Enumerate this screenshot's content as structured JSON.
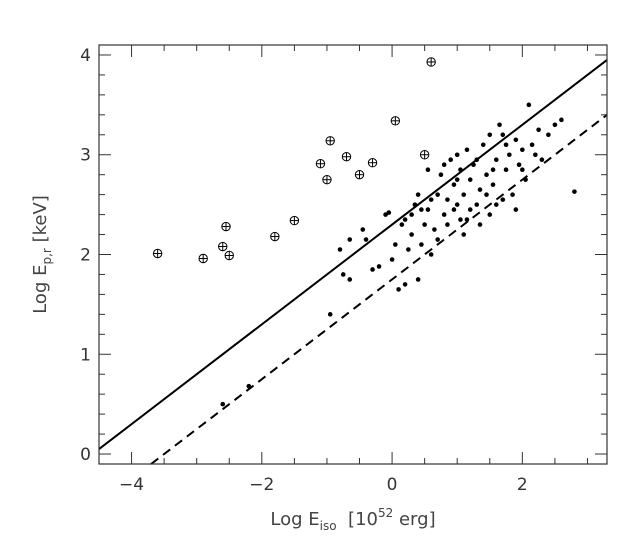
{
  "chart_data": {
    "type": "scatter",
    "title": "",
    "xlabel": {
      "base": "Log E",
      "sub": "iso",
      "unit_pre": "[10",
      "unit_sup": "52",
      "unit_post": " erg]"
    },
    "ylabel": {
      "base": "Log E",
      "sub": "p,r",
      "unit": " [keV]"
    },
    "xlim": [
      -4.5,
      3.3
    ],
    "ylim": [
      -0.1,
      4.1
    ],
    "x_ticks": [
      -4,
      -2,
      0,
      2
    ],
    "x_tick_labels": [
      "−4",
      "−2",
      "0",
      "2"
    ],
    "y_ticks": [
      0,
      1,
      2,
      3,
      4
    ],
    "y_tick_labels": [
      "0",
      "1",
      "2",
      "3",
      "4"
    ],
    "grid": false,
    "lines": [
      {
        "style": "solid",
        "slope": 0.5,
        "intercept": 2.3
      },
      {
        "style": "dashed",
        "slope": 0.5,
        "intercept": 1.75
      }
    ],
    "series": [
      {
        "marker": "circled-plus",
        "points": [
          [
            -3.6,
            2.01
          ],
          [
            -2.9,
            1.96
          ],
          [
            -2.6,
            2.08
          ],
          [
            -2.55,
            2.28
          ],
          [
            -2.5,
            1.99
          ],
          [
            -1.8,
            2.18
          ],
          [
            -1.5,
            2.34
          ],
          [
            -1.1,
            2.91
          ],
          [
            -1.0,
            2.75
          ],
          [
            -0.95,
            3.14
          ],
          [
            -0.7,
            2.98
          ],
          [
            -0.5,
            2.8
          ],
          [
            -0.3,
            2.92
          ],
          [
            0.05,
            3.34
          ],
          [
            0.5,
            3.0
          ],
          [
            0.6,
            3.93
          ]
        ]
      },
      {
        "marker": "dot",
        "points": [
          [
            -2.6,
            0.5
          ],
          [
            -2.2,
            0.68
          ],
          [
            -0.95,
            1.4
          ],
          [
            -0.75,
            1.8
          ],
          [
            -0.65,
            1.75
          ],
          [
            -0.8,
            2.05
          ],
          [
            -0.65,
            2.15
          ],
          [
            -0.45,
            2.25
          ],
          [
            -0.4,
            2.15
          ],
          [
            -0.3,
            1.85
          ],
          [
            -0.2,
            1.88
          ],
          [
            -0.1,
            2.4
          ],
          [
            -0.05,
            2.42
          ],
          [
            0.0,
            1.95
          ],
          [
            0.05,
            2.1
          ],
          [
            0.1,
            1.65
          ],
          [
            0.15,
            2.3
          ],
          [
            0.2,
            1.7
          ],
          [
            0.25,
            2.05
          ],
          [
            0.3,
            2.2
          ],
          [
            0.35,
            2.5
          ],
          [
            0.4,
            1.75
          ],
          [
            0.45,
            2.1
          ],
          [
            0.5,
            2.3
          ],
          [
            0.55,
            2.45
          ],
          [
            0.6,
            2.0
          ],
          [
            0.65,
            2.25
          ],
          [
            0.7,
            2.6
          ],
          [
            0.75,
            2.8
          ],
          [
            0.8,
            2.4
          ],
          [
            0.85,
            2.55
          ],
          [
            0.9,
            2.95
          ],
          [
            0.95,
            2.7
          ],
          [
            1.0,
            2.5
          ],
          [
            1.0,
            3.0
          ],
          [
            1.05,
            2.85
          ],
          [
            1.1,
            2.6
          ],
          [
            1.15,
            2.35
          ],
          [
            1.2,
            2.75
          ],
          [
            1.25,
            2.9
          ],
          [
            1.3,
            2.5
          ],
          [
            1.35,
            2.65
          ],
          [
            1.4,
            3.1
          ],
          [
            1.45,
            2.8
          ],
          [
            1.5,
            2.4
          ],
          [
            1.5,
            3.2
          ],
          [
            1.55,
            2.7
          ],
          [
            1.6,
            2.95
          ],
          [
            1.65,
            3.3
          ],
          [
            1.7,
            2.55
          ],
          [
            1.75,
            2.85
          ],
          [
            1.8,
            3.0
          ],
          [
            1.85,
            2.6
          ],
          [
            1.9,
            3.15
          ],
          [
            1.95,
            2.9
          ],
          [
            2.0,
            3.05
          ],
          [
            2.05,
            2.75
          ],
          [
            2.1,
            3.5
          ],
          [
            2.2,
            3.0
          ],
          [
            2.25,
            3.25
          ],
          [
            2.3,
            2.95
          ],
          [
            2.4,
            3.2
          ],
          [
            2.5,
            3.3
          ],
          [
            2.6,
            3.35
          ],
          [
            2.8,
            2.63
          ],
          [
            0.2,
            2.35
          ],
          [
            0.4,
            2.6
          ],
          [
            0.7,
            2.15
          ],
          [
            0.85,
            2.3
          ],
          [
            1.1,
            2.2
          ],
          [
            1.2,
            2.45
          ],
          [
            1.3,
            2.95
          ],
          [
            1.6,
            2.5
          ],
          [
            1.75,
            3.1
          ],
          [
            1.9,
            2.45
          ],
          [
            2.0,
            2.85
          ],
          [
            0.55,
            2.85
          ],
          [
            0.95,
            2.45
          ],
          [
            1.35,
            2.3
          ],
          [
            1.45,
            2.6
          ],
          [
            0.3,
            2.4
          ],
          [
            0.6,
            2.55
          ],
          [
            1.0,
            2.75
          ],
          [
            1.15,
            3.05
          ],
          [
            1.55,
            2.85
          ],
          [
            1.7,
            3.2
          ],
          [
            2.15,
            3.1
          ],
          [
            0.45,
            2.45
          ],
          [
            0.8,
            2.9
          ],
          [
            1.05,
            2.35
          ]
        ]
      }
    ]
  }
}
